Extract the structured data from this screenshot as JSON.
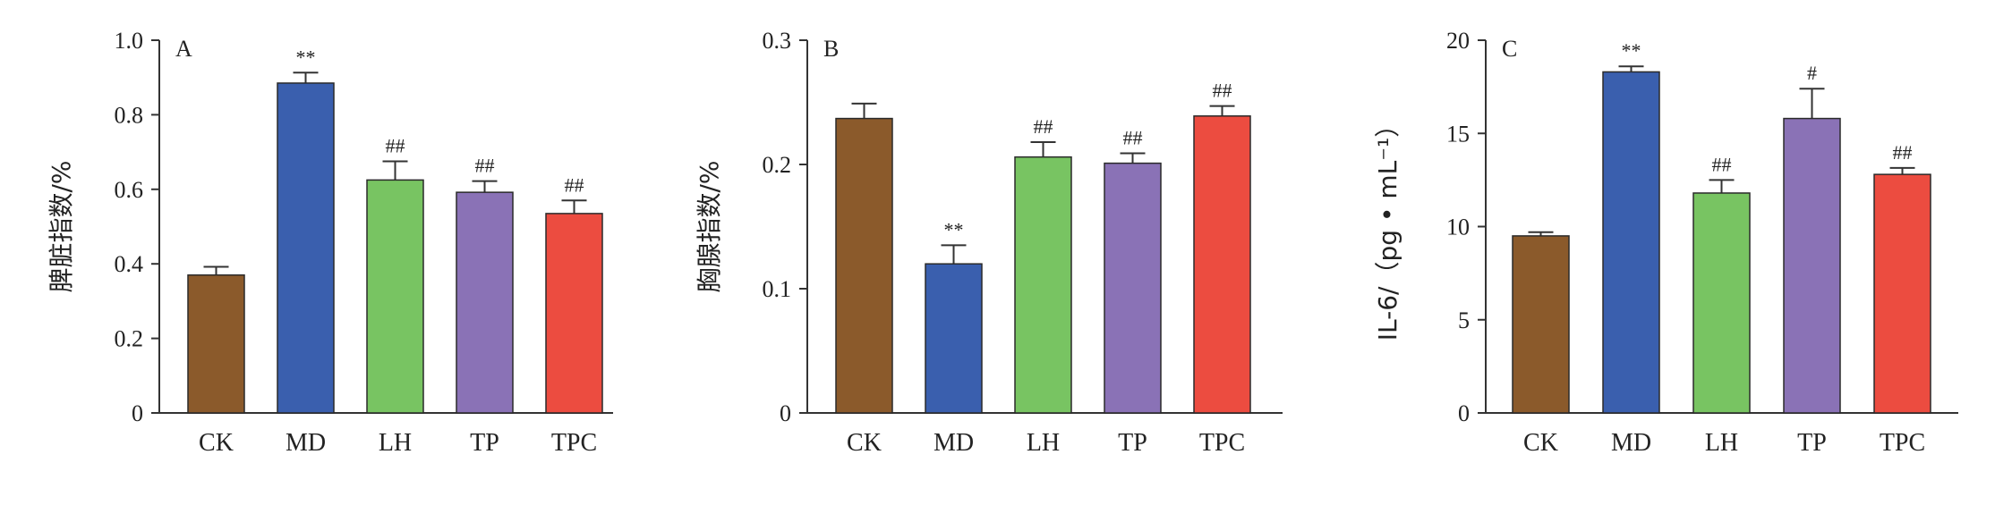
{
  "chart_data": [
    {
      "type": "bar",
      "panel": "A",
      "ylabel": "脾脏指数/%",
      "ylim": [
        0,
        1.0
      ],
      "yticks": [
        "0",
        "0.2",
        "0.4",
        "0.6",
        "0.8",
        "1.0"
      ],
      "ytick_values": [
        0,
        0.2,
        0.4,
        0.6,
        0.8,
        1.0
      ],
      "categories": [
        "CK",
        "MD",
        "LH",
        "TP",
        "TPC"
      ],
      "values": [
        0.37,
        0.885,
        0.625,
        0.592,
        0.535
      ],
      "errors": [
        0.022,
        0.028,
        0.05,
        0.03,
        0.035
      ],
      "significance": [
        "",
        "**",
        "##",
        "##",
        "##"
      ]
    },
    {
      "type": "bar",
      "panel": "B",
      "ylabel": "胸腺指数/%",
      "ylim": [
        0,
        0.3
      ],
      "yticks": [
        "0",
        "0.1",
        "0.2",
        "0.3"
      ],
      "ytick_values": [
        0,
        0.1,
        0.2,
        0.3
      ],
      "categories": [
        "CK",
        "MD",
        "LH",
        "TP",
        "TPC"
      ],
      "values": [
        0.237,
        0.12,
        0.206,
        0.201,
        0.239
      ],
      "errors": [
        0.012,
        0.015,
        0.012,
        0.008,
        0.008
      ],
      "significance": [
        "",
        "**",
        "##",
        "##",
        "##"
      ]
    },
    {
      "type": "bar",
      "panel": "C",
      "ylabel": "IL-6/（pg • mL⁻¹）",
      "ylim": [
        0,
        20
      ],
      "yticks": [
        "0",
        "5",
        "10",
        "15",
        "20"
      ],
      "ytick_values": [
        0,
        5,
        10,
        15,
        20
      ],
      "categories": [
        "CK",
        "MD",
        "LH",
        "TP",
        "TPC"
      ],
      "values": [
        9.5,
        18.3,
        11.8,
        15.8,
        12.8
      ],
      "errors": [
        0.2,
        0.3,
        0.7,
        1.6,
        0.35
      ],
      "significance": [
        "",
        "**",
        "##",
        "#",
        "##"
      ]
    }
  ],
  "colors": {
    "bars": [
      "#8b5a2b",
      "#3a5fae",
      "#78c462",
      "#8a72b6",
      "#ec4c40"
    ],
    "axis": "#333333"
  }
}
